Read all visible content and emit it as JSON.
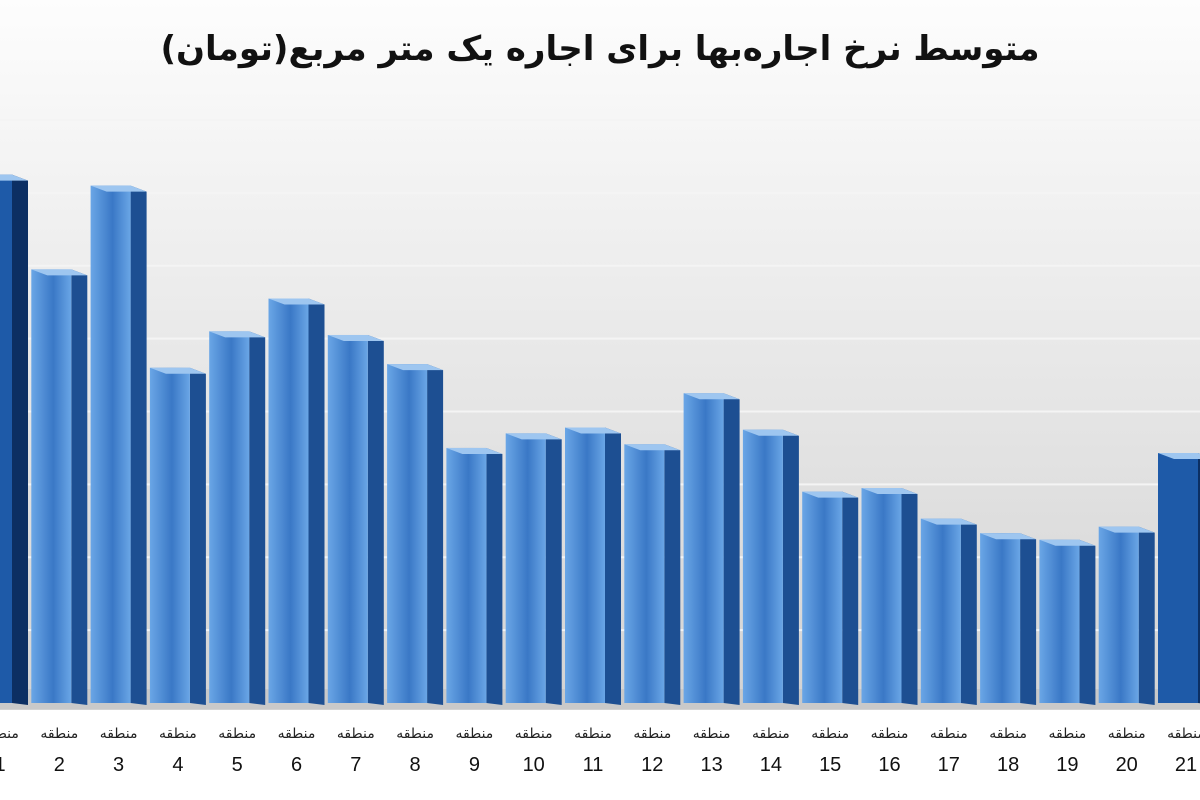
{
  "chart_data": {
    "type": "bar",
    "title": "متوسط نرخ اجاره‌بها برای اجاره یک متر مربع(تومان)",
    "xlabel": "",
    "ylabel": "",
    "category_prefix": "منطقه",
    "categories": [
      "1",
      "2",
      "3",
      "4",
      "5",
      "6",
      "7",
      "8",
      "9",
      "10",
      "11",
      "12",
      "13",
      "14",
      "15",
      "16",
      "17",
      "18",
      "19",
      "20",
      "21"
    ],
    "values": [
      72.5,
      59.5,
      71.0,
      46.0,
      51.0,
      55.5,
      50.5,
      46.5,
      35.0,
      37.0,
      37.8,
      35.5,
      42.5,
      37.5,
      29.0,
      29.5,
      25.3,
      23.3,
      22.4,
      24.2,
      34.3
    ],
    "ylim": [
      0,
      80
    ],
    "gridlines": [
      10,
      20,
      30,
      40,
      50,
      60,
      70,
      80
    ],
    "grid": true,
    "legend": "none",
    "colors": {
      "bar_front_light": "#6aa6e6",
      "bar_front_dark": "#3a78c6",
      "bar_side": "#1d4f92",
      "bar_top": "#9ec6f0",
      "edge_bar_front": "#1e5aa8",
      "edge_bar_side": "#0c2f63",
      "floor": "#c9c9c9",
      "background_top": "#fdfdfd",
      "background_bottom": "#d3d3d3",
      "gridline": "#f4f4f4"
    }
  }
}
